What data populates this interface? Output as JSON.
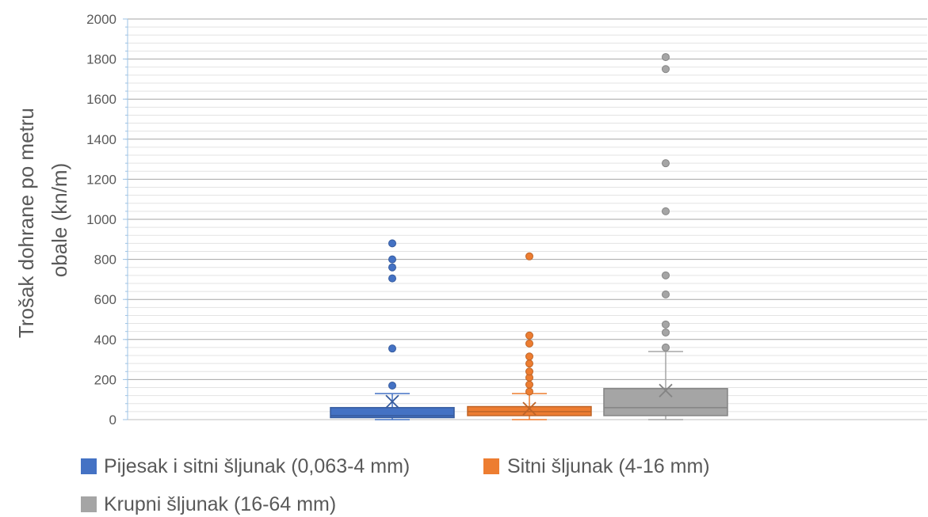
{
  "chart_data": {
    "type": "box",
    "ylabel": "Trošak dohrane po metru obale (kn/m)",
    "ylabel_lines": [
      "Trošak dohrane po metru",
      "obale (kn/m)"
    ],
    "ylim": [
      0,
      2000
    ],
    "yticks": [
      0,
      200,
      400,
      600,
      800,
      1000,
      1200,
      1400,
      1600,
      1800,
      2000
    ],
    "ytick_labels": [
      "0",
      "200",
      "400",
      "600",
      "800",
      "1000",
      "1200",
      "1400",
      "1600",
      "1800",
      "2000"
    ],
    "minor_grid_step": 40,
    "grid": true,
    "legend_position": "bottom",
    "series": [
      {
        "name": "Pijesak i sitni šljunak (0,063-4 mm)",
        "color": "#4472C4",
        "min": 0,
        "q1": 10,
        "median": 20,
        "q3": 60,
        "whisker_high": 130,
        "mean": 90,
        "outliers": [
          170,
          355,
          705,
          760,
          800,
          880
        ]
      },
      {
        "name": "Sitni šljunak (4-16 mm)",
        "color": "#ED7D31",
        "min": 0,
        "q1": 20,
        "median": 40,
        "q3": 65,
        "whisker_high": 130,
        "mean": 55,
        "outliers": [
          140,
          175,
          210,
          240,
          280,
          315,
          380,
          420,
          815
        ]
      },
      {
        "name": "Krupni šljunak (16-64 mm)",
        "color": "#A5A5A5",
        "min": 0,
        "q1": 20,
        "median": 60,
        "q3": 155,
        "whisker_high": 340,
        "mean": 145,
        "outliers": [
          360,
          435,
          475,
          625,
          720,
          1040,
          1280,
          1750,
          1810
        ]
      }
    ]
  }
}
